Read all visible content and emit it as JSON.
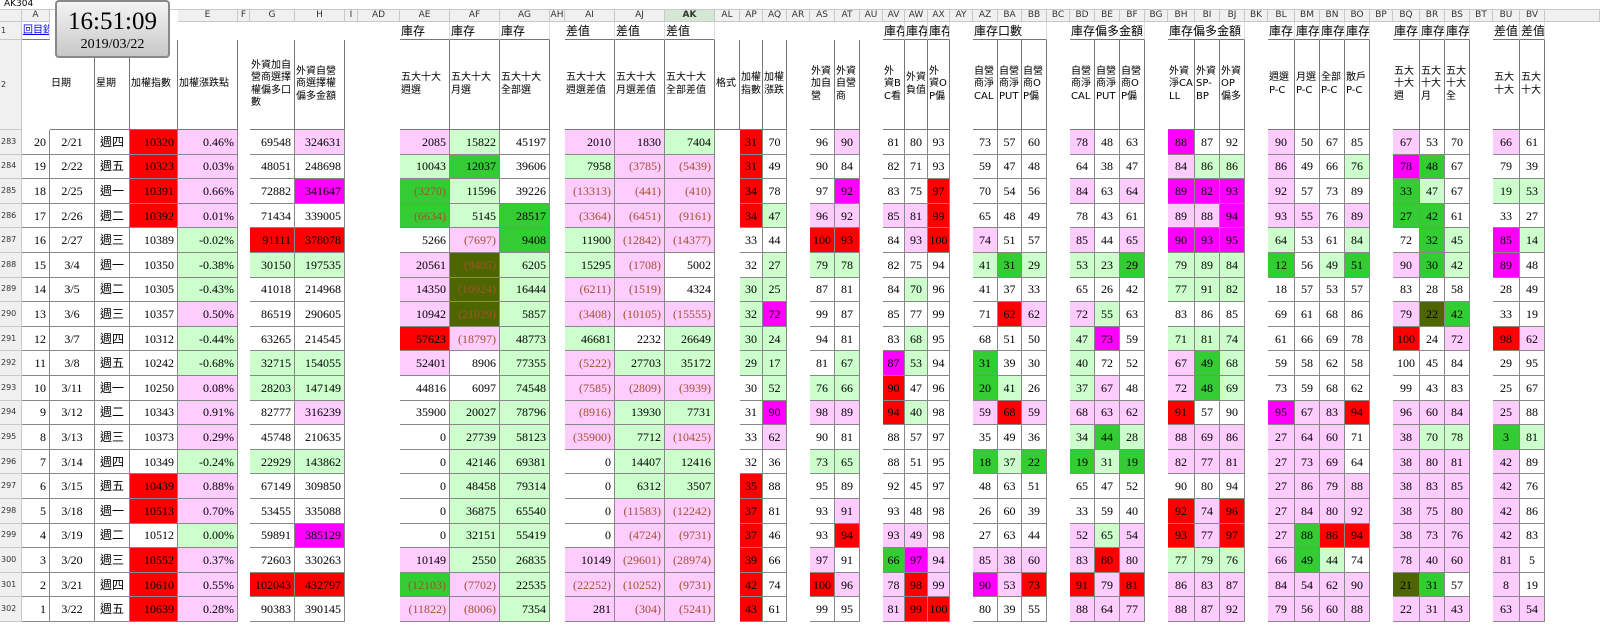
{
  "name_box": "AK304",
  "clock": {
    "time": "16:51:09",
    "date": "2019/03/22"
  },
  "column_letters": [
    "A",
    "E",
    "F",
    "G",
    "H",
    "I",
    "AD",
    "AE",
    "AF",
    "AG",
    "AH",
    "AI",
    "AJ",
    "AK",
    "AL",
    "AP",
    "AQ",
    "AR",
    "AS",
    "AT",
    "AU",
    "AV",
    "AW",
    "AX",
    "AY",
    "AZ",
    "BA",
    "BB",
    "BC",
    "BD",
    "BE",
    "BF",
    "BG",
    "BH",
    "BI",
    "BJ",
    "BK",
    "BL",
    "BM",
    "BN",
    "BO",
    "BP",
    "BQ",
    "BR",
    "BS",
    "BT",
    "BU",
    "BV"
  ],
  "row_numbers": [
    1,
    2,
    283,
    284,
    285,
    286,
    287,
    288,
    289,
    290,
    291,
    292,
    293,
    294,
    295,
    296,
    297,
    298,
    299,
    300,
    301,
    302
  ],
  "header_row1": [
    "回目錄",
    "庫存",
    "庫存",
    "庫存",
    "差值",
    "差值",
    "差值",
    "庫存",
    "庫存",
    "庫存",
    "庫存口數",
    "庫存偏多金額",
    "庫存偏多金額",
    "庫存",
    "庫存",
    "庫存",
    "庫存",
    "庫存",
    "庫存",
    "庫存",
    "差值",
    "差值"
  ],
  "header_row2": [
    "日期",
    "星期",
    "加權指數",
    "加權漲跌點",
    "外資加自營商選擇權偏多口數",
    "外資自營商選擇權偏多金額",
    "五大十大週選",
    "五大十大月選",
    "五大十大全部選",
    "五大十大週選差值",
    "五大十大月選差值",
    "五大十大全部差值",
    "格式",
    "加權指數",
    "加權漲跌",
    "外資加自營",
    "外資自營商",
    "外資BC看",
    "外資負值",
    "外資OP偏",
    "自營商淨CAL",
    "自營商淨PUT",
    "自營商OP偏",
    "自營商淨CAL",
    "自營商淨PUT",
    "自營商OP偏",
    "外資淨CALL",
    "外資SP-BP",
    "外資OP偏多",
    "週選P-C",
    "月選P-C",
    "全部P-C",
    "散戶P-C",
    "五大十大週",
    "五大十大月",
    "五大十大全",
    "五大十大",
    "五大十大"
  ],
  "rows": [
    [
      "20",
      "2/21",
      "週四",
      "10320",
      "0.46%",
      "69548",
      "324631",
      "2085",
      "15822",
      "45197",
      "2010",
      "1830",
      "7404",
      "31",
      "70",
      "96",
      "90",
      "81",
      "80",
      "93",
      "73",
      "57",
      "60",
      "78",
      "48",
      "63",
      "88",
      "87",
      "92",
      "90",
      "50",
      "67",
      "85",
      "67",
      "53",
      "70",
      "66",
      "61"
    ],
    [
      "19",
      "2/22",
      "週五",
      "10323",
      "0.03%",
      "48051",
      "248698",
      "10043",
      "12037",
      "39606",
      "7958",
      "(3785)",
      "(5439)",
      "31",
      "49",
      "90",
      "84",
      "82",
      "71",
      "93",
      "59",
      "47",
      "48",
      "64",
      "38",
      "47",
      "84",
      "86",
      "86",
      "86",
      "49",
      "66",
      "76",
      "78",
      "48",
      "67",
      "79",
      "39"
    ],
    [
      "18",
      "2/25",
      "週一",
      "10391",
      "0.66%",
      "72882",
      "341647",
      "(3270)",
      "11596",
      "39226",
      "(13313)",
      "(441)",
      "(410)",
      "34",
      "78",
      "97",
      "92",
      "83",
      "75",
      "97",
      "70",
      "54",
      "56",
      "84",
      "63",
      "64",
      "89",
      "82",
      "93",
      "92",
      "57",
      "73",
      "89",
      "33",
      "47",
      "67",
      "19",
      "53"
    ],
    [
      "17",
      "2/26",
      "週二",
      "10392",
      "0.01%",
      "71434",
      "339005",
      "(6634)",
      "5145",
      "28517",
      "(3364)",
      "(6451)",
      "(9161)",
      "34",
      "47",
      "96",
      "92",
      "85",
      "81",
      "99",
      "65",
      "48",
      "49",
      "78",
      "43",
      "61",
      "89",
      "88",
      "94",
      "93",
      "55",
      "76",
      "89",
      "27",
      "42",
      "61",
      "33",
      "27"
    ],
    [
      "16",
      "2/27",
      "週三",
      "10389",
      "-0.02%",
      "91111",
      "378078",
      "5266",
      "(7697)",
      "9408",
      "11900",
      "(12842)",
      "(14377)",
      "33",
      "44",
      "100",
      "93",
      "84",
      "93",
      "100",
      "74",
      "51",
      "57",
      "85",
      "44",
      "65",
      "90",
      "93",
      "95",
      "64",
      "53",
      "61",
      "84",
      "72",
      "32",
      "45",
      "85",
      "14"
    ],
    [
      "15",
      "3/4",
      "週一",
      "10350",
      "-0.38%",
      "30150",
      "197535",
      "20561",
      "(9405)",
      "6205",
      "15295",
      "(1708)",
      "5002",
      "32",
      "27",
      "79",
      "78",
      "82",
      "75",
      "94",
      "41",
      "31",
      "29",
      "53",
      "23",
      "29",
      "79",
      "89",
      "84",
      "12",
      "56",
      "49",
      "51",
      "90",
      "30",
      "42",
      "89",
      "48"
    ],
    [
      "14",
      "3/5",
      "週二",
      "10305",
      "-0.43%",
      "41018",
      "214968",
      "14350",
      "(10924)",
      "16444",
      "(6211)",
      "(1519)",
      "4324",
      "30",
      "25",
      "87",
      "81",
      "84",
      "70",
      "96",
      "41",
      "37",
      "33",
      "65",
      "26",
      "42",
      "77",
      "91",
      "82",
      "18",
      "57",
      "53",
      "57",
      "83",
      "28",
      "58",
      "28",
      "49"
    ],
    [
      "13",
      "3/6",
      "週三",
      "10357",
      "0.50%",
      "86519",
      "290605",
      "10942",
      "(21029)",
      "5857",
      "(3408)",
      "(10105)",
      "(15555)",
      "32",
      "72",
      "99",
      "87",
      "85",
      "77",
      "99",
      "71",
      "62",
      "62",
      "72",
      "55",
      "63",
      "83",
      "86",
      "85",
      "69",
      "61",
      "68",
      "86",
      "79",
      "22",
      "42",
      "33",
      "19"
    ],
    [
      "12",
      "3/7",
      "週四",
      "10312",
      "-0.44%",
      "63265",
      "214545",
      "57623",
      "(18797)",
      "48773",
      "46681",
      "2232",
      "26649",
      "30",
      "24",
      "94",
      "81",
      "83",
      "68",
      "95",
      "68",
      "51",
      "50",
      "47",
      "73",
      "59",
      "71",
      "81",
      "74",
      "61",
      "66",
      "69",
      "78",
      "100",
      "24",
      "72",
      "98",
      "62"
    ],
    [
      "11",
      "3/8",
      "週五",
      "10242",
      "-0.68%",
      "32715",
      "154055",
      "52401",
      "8906",
      "77355",
      "(5222)",
      "27703",
      "35172",
      "29",
      "17",
      "81",
      "67",
      "87",
      "53",
      "94",
      "31",
      "39",
      "30",
      "40",
      "72",
      "52",
      "67",
      "49",
      "68",
      "59",
      "58",
      "62",
      "58",
      "100",
      "45",
      "84",
      "29",
      "95"
    ],
    [
      "10",
      "3/11",
      "週一",
      "10250",
      "0.08%",
      "28203",
      "147149",
      "44816",
      "6097",
      "74548",
      "(7585)",
      "(2809)",
      "(3939)",
      "30",
      "52",
      "76",
      "66",
      "90",
      "47",
      "96",
      "20",
      "41",
      "26",
      "37",
      "67",
      "48",
      "72",
      "48",
      "69",
      "73",
      "59",
      "68",
      "62",
      "99",
      "43",
      "83",
      "25",
      "67"
    ],
    [
      "9",
      "3/12",
      "週二",
      "10343",
      "0.91%",
      "82777",
      "316239",
      "35900",
      "20027",
      "78796",
      "(8916)",
      "13930",
      "7731",
      "31",
      "90",
      "98",
      "89",
      "94",
      "40",
      "98",
      "59",
      "68",
      "59",
      "68",
      "63",
      "62",
      "91",
      "57",
      "90",
      "95",
      "67",
      "83",
      "94",
      "96",
      "60",
      "84",
      "25",
      "88"
    ],
    [
      "8",
      "3/13",
      "週三",
      "10373",
      "0.29%",
      "45748",
      "210635",
      "0",
      "27739",
      "58123",
      "(35900)",
      "7712",
      "(10425)",
      "33",
      "62",
      "90",
      "81",
      "88",
      "57",
      "97",
      "35",
      "49",
      "36",
      "34",
      "44",
      "28",
      "88",
      "69",
      "86",
      "27",
      "64",
      "60",
      "71",
      "38",
      "70",
      "78",
      "3",
      "81"
    ],
    [
      "7",
      "3/14",
      "週四",
      "10349",
      "-0.24%",
      "22929",
      "143862",
      "0",
      "42146",
      "69381",
      "0",
      "14407",
      "12416",
      "32",
      "36",
      "73",
      "65",
      "88",
      "51",
      "95",
      "18",
      "37",
      "22",
      "19",
      "31",
      "19",
      "82",
      "77",
      "81",
      "27",
      "73",
      "69",
      "64",
      "38",
      "80",
      "81",
      "42",
      "89"
    ],
    [
      "6",
      "3/15",
      "週五",
      "10439",
      "0.88%",
      "67149",
      "309850",
      "0",
      "48458",
      "79314",
      "0",
      "6312",
      "3507",
      "35",
      "88",
      "95",
      "89",
      "92",
      "45",
      "97",
      "48",
      "63",
      "51",
      "65",
      "47",
      "52",
      "90",
      "80",
      "94",
      "27",
      "86",
      "79",
      "88",
      "38",
      "83",
      "85",
      "42",
      "76"
    ],
    [
      "5",
      "3/18",
      "週一",
      "10513",
      "0.70%",
      "53455",
      "335088",
      "0",
      "36875",
      "65540",
      "0",
      "(11583)",
      "(12242)",
      "37",
      "81",
      "93",
      "91",
      "93",
      "48",
      "98",
      "26",
      "60",
      "39",
      "33",
      "59",
      "40",
      "92",
      "74",
      "96",
      "27",
      "84",
      "80",
      "92",
      "38",
      "75",
      "80",
      "42",
      "86"
    ],
    [
      "4",
      "3/19",
      "週二",
      "10512",
      "0.00%",
      "59891",
      "385129",
      "0",
      "32151",
      "55419",
      "0",
      "(4724)",
      "(9731)",
      "37",
      "46",
      "93",
      "94",
      "93",
      "49",
      "98",
      "27",
      "63",
      "44",
      "52",
      "65",
      "54",
      "93",
      "77",
      "97",
      "27",
      "88",
      "86",
      "94",
      "38",
      "73",
      "76",
      "42",
      "83"
    ],
    [
      "3",
      "3/20",
      "週三",
      "10552",
      "0.37%",
      "72603",
      "330263",
      "10149",
      "2550",
      "26835",
      "10149",
      "(29601)",
      "(28974)",
      "39",
      "66",
      "97",
      "91",
      "66",
      "97",
      "94",
      "85",
      "38",
      "60",
      "83",
      "80",
      "80",
      "77",
      "79",
      "76",
      "66",
      "49",
      "44",
      "74",
      "78",
      "40",
      "60",
      "81",
      "5"
    ],
    [
      "2",
      "3/21",
      "週四",
      "10610",
      "0.55%",
      "102043",
      "432797",
      "(12103)",
      "(7702)",
      "22535",
      "(22252)",
      "(10252)",
      "(9731)",
      "42",
      "74",
      "100",
      "96",
      "78",
      "98",
      "99",
      "90",
      "53",
      "73",
      "91",
      "79",
      "81",
      "86",
      "83",
      "87",
      "84",
      "54",
      "62",
      "90",
      "21",
      "31",
      "57",
      "8",
      "19"
    ],
    [
      "1",
      "3/22",
      "週五",
      "10639",
      "0.28%",
      "90383",
      "390145",
      "(11822)",
      "(8006)",
      "7354",
      "281",
      "(304)",
      "(5241)",
      "43",
      "61",
      "99",
      "95",
      "81",
      "99",
      "100",
      "80",
      "39",
      "55",
      "88",
      "64",
      "77",
      "88",
      "87",
      "92",
      "79",
      "56",
      "60",
      "88",
      "22",
      "31",
      "43",
      "63",
      "54"
    ]
  ]
}
